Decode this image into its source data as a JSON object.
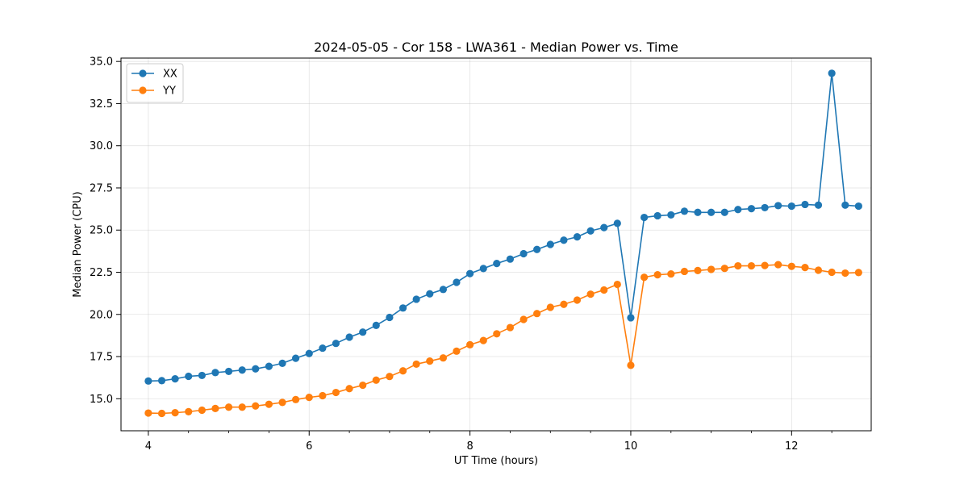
{
  "chart_data": {
    "type": "line",
    "title": "2024-05-05 - Cor 158 - LWA361 - Median Power vs. Time",
    "xlabel": "UT Time (hours)",
    "ylabel": "Median Power (CPU)",
    "xlim": [
      3.66,
      12.99
    ],
    "ylim": [
      13.1,
      35.2
    ],
    "xticks": [
      4,
      6,
      8,
      10,
      12
    ],
    "xtick_labels": [
      "4",
      "6",
      "8",
      "10",
      "12"
    ],
    "xminor_step": 0.5,
    "yticks": [
      15.0,
      17.5,
      20.0,
      22.5,
      25.0,
      27.5,
      30.0,
      32.5,
      35.0
    ],
    "ytick_labels": [
      "15.0",
      "17.5",
      "20.0",
      "22.5",
      "25.0",
      "27.5",
      "30.0",
      "32.5",
      "35.0"
    ],
    "grid": true,
    "legend_position": "top-left",
    "x": [
      4.0,
      4.167,
      4.333,
      4.5,
      4.667,
      4.833,
      5.0,
      5.167,
      5.333,
      5.5,
      5.667,
      5.833,
      6.0,
      6.167,
      6.333,
      6.5,
      6.667,
      6.833,
      7.0,
      7.167,
      7.333,
      7.5,
      7.667,
      7.833,
      8.0,
      8.167,
      8.333,
      8.5,
      8.667,
      8.833,
      9.0,
      9.167,
      9.333,
      9.5,
      9.667,
      9.833,
      10.0,
      10.167,
      10.333,
      10.5,
      10.667,
      10.833,
      11.0,
      11.167,
      11.333,
      11.5,
      11.667,
      11.833,
      12.0,
      12.167,
      12.333,
      12.5,
      12.667,
      12.833
    ],
    "series": [
      {
        "name": "XX",
        "color": "#1f77b4",
        "values": [
          16.05,
          16.07,
          16.18,
          16.33,
          16.38,
          16.55,
          16.62,
          16.7,
          16.77,
          16.92,
          17.1,
          17.4,
          17.68,
          18.0,
          18.28,
          18.65,
          18.95,
          19.35,
          19.82,
          20.38,
          20.9,
          21.22,
          21.48,
          21.9,
          22.42,
          22.72,
          23.02,
          23.28,
          23.6,
          23.85,
          24.15,
          24.4,
          24.6,
          24.95,
          25.15,
          25.4,
          19.8,
          25.75,
          25.85,
          25.9,
          26.12,
          26.05,
          26.05,
          26.05,
          26.22,
          26.27,
          26.33,
          26.45,
          26.42,
          26.52,
          26.48,
          34.3,
          26.48,
          26.42
        ]
      },
      {
        "name": "YY",
        "color": "#ff7f0e",
        "values": [
          14.15,
          14.13,
          14.17,
          14.23,
          14.32,
          14.42,
          14.5,
          14.5,
          14.57,
          14.67,
          14.78,
          14.95,
          15.08,
          15.18,
          15.37,
          15.6,
          15.8,
          16.1,
          16.32,
          16.65,
          17.05,
          17.23,
          17.42,
          17.82,
          18.2,
          18.45,
          18.85,
          19.22,
          19.7,
          20.05,
          20.42,
          20.6,
          20.85,
          21.2,
          21.45,
          21.78,
          16.98,
          22.2,
          22.35,
          22.4,
          22.55,
          22.6,
          22.67,
          22.73,
          22.88,
          22.88,
          22.9,
          22.95,
          22.85,
          22.78,
          22.62,
          22.5,
          22.45,
          22.48
        ]
      }
    ]
  }
}
